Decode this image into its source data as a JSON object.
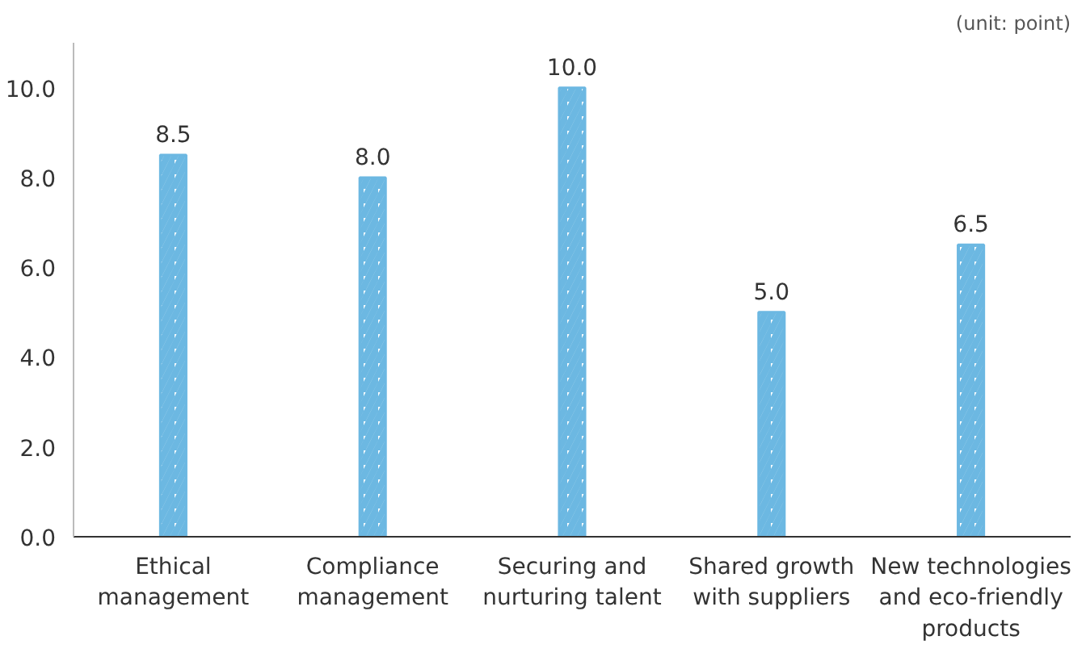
{
  "chart_data": {
    "type": "bar",
    "categories": [
      "Ethical management",
      "Compliance management",
      "Securing and nurturing talent",
      "Shared growth with suppliers",
      "New technologies and eco-friendly products"
    ],
    "values": [
      8.5,
      8.0,
      10.0,
      5.0,
      6.5
    ],
    "value_labels": [
      "8.5",
      "8.0",
      "10.0",
      "5.0",
      "6.5"
    ],
    "color": "#6cb8e2",
    "ylim": [
      0,
      11
    ],
    "yticks": [
      {
        "value": 0,
        "label": "0.0"
      },
      {
        "value": 2,
        "label": "2.0"
      },
      {
        "value": 4,
        "label": "4.0"
      },
      {
        "value": 6,
        "label": "6.0"
      },
      {
        "value": 8,
        "label": "8.0"
      },
      {
        "value": 10,
        "label": "10.0"
      }
    ],
    "annotations": [
      "(unit: point)"
    ]
  }
}
